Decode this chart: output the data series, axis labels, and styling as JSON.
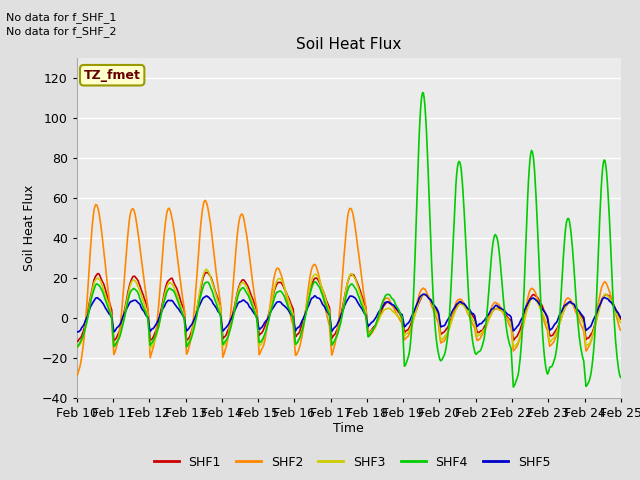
{
  "title": "Soil Heat Flux",
  "ylabel": "Soil Heat Flux",
  "xlabel": "Time",
  "annotations": [
    "No data for f_SHF_1",
    "No data for f_SHF_2"
  ],
  "box_label": "TZ_fmet",
  "ylim": [
    -40,
    130
  ],
  "yticks": [
    -40,
    -20,
    0,
    20,
    40,
    60,
    80,
    100,
    120
  ],
  "x_tick_labels": [
    "Feb 10",
    "Feb 11",
    "Feb 12",
    "Feb 13",
    "Feb 14",
    "Feb 15",
    "Feb 16",
    "Feb 17",
    "Feb 18",
    "Feb 19",
    "Feb 20",
    "Feb 21",
    "Feb 22",
    "Feb 23",
    "Feb 24",
    "Feb 25"
  ],
  "colors": {
    "SHF1": "#cc0000",
    "SHF2": "#ff8800",
    "SHF3": "#cccc00",
    "SHF4": "#00cc00",
    "SHF5": "#0000cc"
  },
  "legend_entries": [
    "SHF1",
    "SHF2",
    "SHF3",
    "SHF4",
    "SHF5"
  ],
  "background_color": "#e0e0e0",
  "plot_bg_color": "#ebebeb",
  "grid_color": "#ffffff",
  "box_facecolor": "#ffffcc",
  "box_edgecolor": "#999900",
  "n_days": 15,
  "pts_per_day": 48
}
